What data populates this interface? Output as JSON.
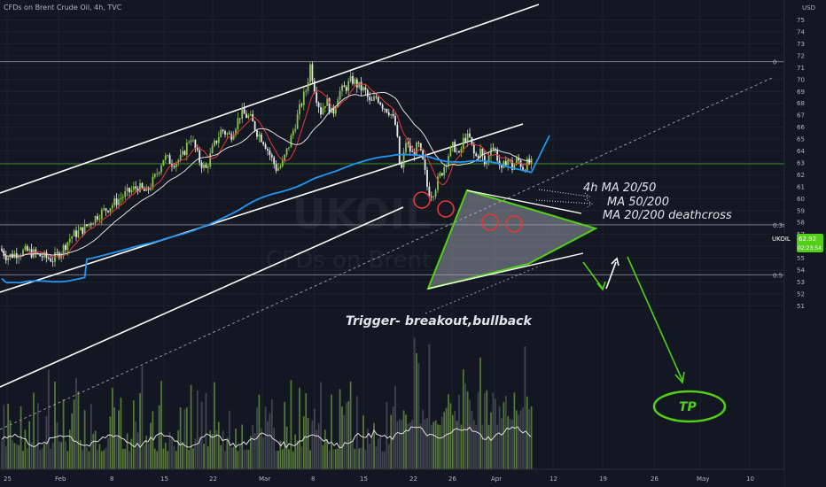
{
  "header": {
    "title": "CFDs on Brent Crude Oil, 4h, TVC",
    "currency": "USD"
  },
  "watermark": {
    "symbol": "UKOIL",
    "name": "CFDs on Brent"
  },
  "price_badge": {
    "symbol": "UKOIL",
    "price": "62.92",
    "countdown": "02:23:54"
  },
  "colors": {
    "background": "#131722",
    "up": "#8bc34a",
    "down": "#e8e8e8",
    "ma20": "#e53935",
    "ma50": "#e0e0e0",
    "ma200": "#2196f3",
    "accent_green": "#52d017",
    "volume_line": "#e0e0e0"
  },
  "annotations": {
    "ma_lines": [
      "4h   MA 20/50",
      "MA 50/200",
      "MA 20/200  deathcross"
    ],
    "trigger": "Trigger- breakout,bullback",
    "tp": "TP"
  },
  "fib_levels": [
    {
      "label": "0",
      "value": 71.5
    },
    {
      "label": "0.382",
      "value": 57.8
    },
    {
      "label": "0.5",
      "value": 53.6
    }
  ],
  "chart_data": {
    "type": "candlestick",
    "title": "CFDs on Brent Crude Oil, 4h, TVC",
    "x_ticks": [
      "25",
      "Feb",
      "8",
      "15",
      "22",
      "Mar",
      "8",
      "15",
      "22",
      "26",
      "Apr",
      "12",
      "19",
      "26",
      "May",
      "10"
    ],
    "y_ticks": [
      51,
      52,
      53,
      54,
      55,
      56,
      57,
      58,
      59,
      60,
      61,
      62,
      63,
      64,
      65,
      66,
      67,
      68,
      69,
      70,
      71,
      72,
      73,
      74,
      75
    ],
    "ylim": [
      50.5,
      75.8
    ],
    "last_price": 62.92,
    "price_path": [
      [
        0,
        55.8
      ],
      [
        8,
        55.1
      ],
      [
        18,
        55.4
      ],
      [
        30,
        55.6
      ],
      [
        45,
        55.2
      ],
      [
        60,
        54.9
      ],
      [
        70,
        55.7
      ],
      [
        80,
        56.8
      ],
      [
        95,
        57.5
      ],
      [
        110,
        58.6
      ],
      [
        125,
        59.4
      ],
      [
        140,
        60.3
      ],
      [
        155,
        61.0
      ],
      [
        165,
        60.5
      ],
      [
        175,
        61.8
      ],
      [
        185,
        63.5
      ],
      [
        195,
        63.0
      ],
      [
        205,
        63.4
      ],
      [
        215,
        65.3
      ],
      [
        225,
        63.2
      ],
      [
        232,
        62.4
      ],
      [
        240,
        64.2
      ],
      [
        250,
        65.8
      ],
      [
        260,
        65.2
      ],
      [
        272,
        67.2
      ],
      [
        282,
        66.8
      ],
      [
        290,
        65.6
      ],
      [
        298,
        64.8
      ],
      [
        305,
        63.6
      ],
      [
        312,
        62.5
      ],
      [
        318,
        62.8
      ],
      [
        326,
        64.5
      ],
      [
        334,
        66.5
      ],
      [
        340,
        68.0
      ],
      [
        346,
        69.3
      ],
      [
        350,
        71.2
      ],
      [
        356,
        68.8
      ],
      [
        362,
        67.3
      ],
      [
        368,
        68.3
      ],
      [
        375,
        67.0
      ],
      [
        382,
        68.9
      ],
      [
        390,
        69.3
      ],
      [
        397,
        70.0
      ],
      [
        405,
        69.4
      ],
      [
        412,
        69.0
      ],
      [
        418,
        67.9
      ],
      [
        425,
        68.6
      ],
      [
        432,
        67.8
      ],
      [
        440,
        67.3
      ],
      [
        447,
        66.0
      ],
      [
        452,
        61.9
      ],
      [
        458,
        64.8
      ],
      [
        465,
        63.7
      ],
      [
        472,
        64.5
      ],
      [
        478,
        62.8
      ],
      [
        483,
        60.6
      ],
      [
        488,
        60.4
      ],
      [
        494,
        61.5
      ],
      [
        500,
        62.5
      ],
      [
        506,
        63.7
      ],
      [
        512,
        64.5
      ],
      [
        518,
        63.5
      ],
      [
        524,
        65.2
      ],
      [
        530,
        65.0
      ],
      [
        536,
        63.4
      ],
      [
        542,
        64.0
      ],
      [
        548,
        62.6
      ],
      [
        554,
        64.6
      ],
      [
        560,
        63.8
      ],
      [
        566,
        62.2
      ],
      [
        572,
        63.5
      ],
      [
        578,
        62.6
      ],
      [
        584,
        63.3
      ],
      [
        590,
        62.6
      ],
      [
        596,
        63.0
      ],
      [
        600,
        62.9
      ]
    ],
    "volume_seed": 7,
    "moving_averages": [
      {
        "name": "MA 20",
        "length": 20
      },
      {
        "name": "MA 50",
        "length": 50
      },
      {
        "name": "MA 200",
        "length": 200
      }
    ]
  }
}
